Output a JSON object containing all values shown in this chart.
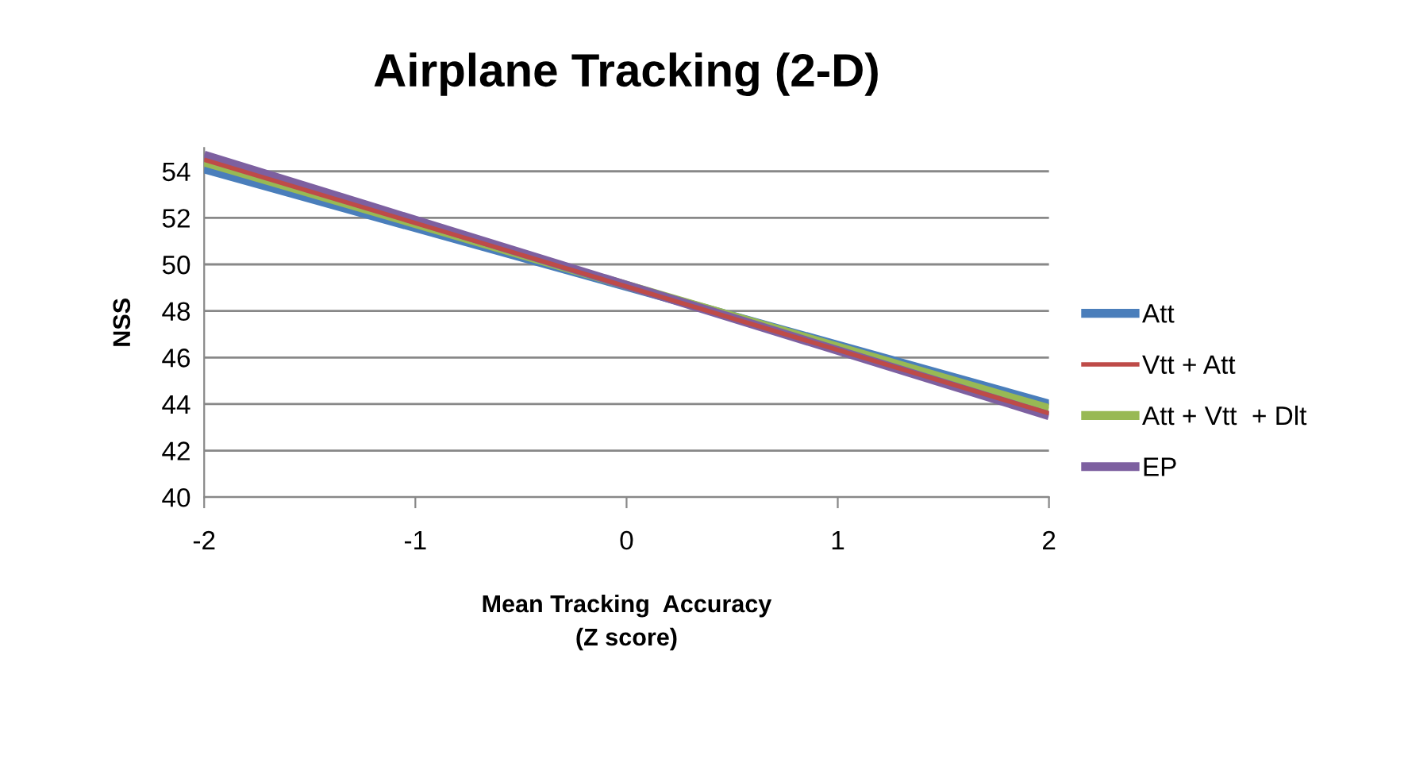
{
  "chart_data": {
    "type": "line",
    "title": "Airplane Tracking (2-D)",
    "xlabel": "Mean Tracking  Accuracy\n(Z score)",
    "ylabel": "NSS",
    "x": [
      -2,
      2
    ],
    "series": [
      {
        "name": "Att",
        "color": "#4a7ebb",
        "values": [
          54.1,
          44.0
        ]
      },
      {
        "name": "Vtt + Att",
        "color": "#be4b48",
        "values": [
          54.5,
          43.6
        ]
      },
      {
        "name": "Att + Vtt  + Dlt",
        "color": "#98b954",
        "values": [
          54.4,
          43.8
        ]
      },
      {
        "name": "EP",
        "color": "#7d60a0",
        "values": [
          54.7,
          43.5
        ]
      }
    ],
    "xlim": [
      -2,
      2
    ],
    "xticks": [
      -2,
      -1,
      0,
      1,
      2
    ],
    "ylim": [
      40,
      55
    ],
    "yticks": [
      40,
      42,
      44,
      46,
      48,
      50,
      52,
      54
    ],
    "grid": "y",
    "legend": "right",
    "marker": "none",
    "line_style": "solid"
  }
}
